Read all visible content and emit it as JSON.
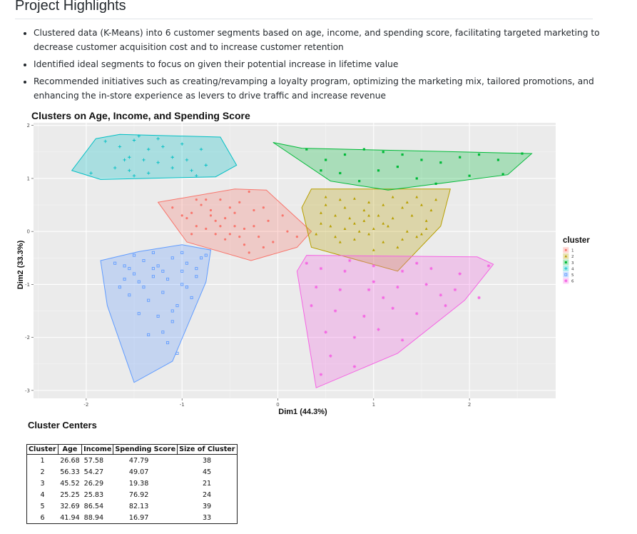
{
  "page": {
    "title": "Project Highlights",
    "bullets": [
      "Clustered data (K-Means) into 6 customer segments based on age, income, and spending score, facilitating targeted marketing to decrease customer acquisition cost and to increase customer retention",
      "Identified ideal segments to focus on given their potential increase in lifetime value",
      "Recommended initiatives such as creating/revamping a loyalty program, optimizing the marketing mix, tailored promotions, and enhancing the in-store experience as levers to drive traffic and increase revenue"
    ]
  },
  "chart_data": {
    "type": "scatter",
    "title": "Clusters on Age, Income, and Spending Score",
    "xlabel": "Dim1 (44.3%)",
    "ylabel": "Dim2 (33.3%)",
    "xlim": [
      -2.55,
      2.9
    ],
    "ylim": [
      -3.15,
      2.05
    ],
    "xticks": [
      -2,
      -1,
      0,
      1,
      2
    ],
    "yticks": [
      2,
      1,
      0,
      -1,
      -2,
      -3
    ],
    "grid": true,
    "legend_title": "cluster",
    "legend_position": "right",
    "series": [
      {
        "name": "1",
        "color": "#F8766D",
        "marker": "circle",
        "hull": [
          [
            -1.25,
            0.55
          ],
          [
            -0.45,
            0.8
          ],
          [
            -0.12,
            0.78
          ],
          [
            0.35,
            0.0
          ],
          [
            0.2,
            -0.3
          ],
          [
            -0.28,
            -0.55
          ],
          [
            -0.95,
            -0.2
          ]
        ],
        "points": [
          [
            -1.1,
            0.45
          ],
          [
            -0.9,
            0.35
          ],
          [
            -0.7,
            0.3
          ],
          [
            -0.55,
            0.25
          ],
          [
            -0.4,
            0.55
          ],
          [
            -0.25,
            0.4
          ],
          [
            -0.1,
            0.2
          ],
          [
            -0.75,
            0.05
          ],
          [
            -0.6,
            0.1
          ],
          [
            -0.5,
            -0.05
          ],
          [
            -0.35,
            0.05
          ],
          [
            -0.2,
            -0.1
          ],
          [
            -0.15,
            -0.3
          ],
          [
            -0.3,
            -0.4
          ],
          [
            -0.85,
            0.1
          ],
          [
            -0.65,
            0.2
          ],
          [
            -0.45,
            0.1
          ],
          [
            -0.6,
            0.6
          ],
          [
            -0.8,
            0.5
          ],
          [
            -0.3,
            0.75
          ],
          [
            0.1,
            0.0
          ],
          [
            0.2,
            -0.1
          ],
          [
            -0.05,
            -0.2
          ],
          [
            -0.95,
            0.25
          ],
          [
            -0.55,
            -0.15
          ],
          [
            -0.4,
            -0.1
          ],
          [
            -0.7,
            0.4
          ],
          [
            -1.0,
            0.3
          ],
          [
            -0.85,
            0.6
          ],
          [
            -0.25,
            0.1
          ],
          [
            -0.15,
            0.45
          ],
          [
            0.05,
            0.3
          ],
          [
            -0.45,
            0.35
          ],
          [
            -0.65,
            -0.05
          ],
          [
            -0.35,
            -0.25
          ],
          [
            -0.75,
            0.6
          ],
          [
            -0.5,
            0.45
          ],
          [
            -0.9,
            -0.05
          ]
        ]
      },
      {
        "name": "2",
        "color": "#B79F00",
        "marker": "triangle",
        "hull": [
          [
            0.35,
            0.8
          ],
          [
            1.8,
            0.8
          ],
          [
            1.7,
            0.1
          ],
          [
            1.25,
            -0.75
          ],
          [
            0.35,
            -0.3
          ],
          [
            0.25,
            0.45
          ]
        ],
        "points": [
          [
            0.5,
            0.65
          ],
          [
            0.65,
            0.6
          ],
          [
            0.8,
            0.62
          ],
          [
            0.95,
            0.55
          ],
          [
            1.1,
            0.5
          ],
          [
            1.3,
            0.45
          ],
          [
            1.5,
            0.5
          ],
          [
            1.65,
            0.6
          ],
          [
            0.45,
            0.35
          ],
          [
            0.6,
            0.3
          ],
          [
            0.75,
            0.25
          ],
          [
            0.9,
            0.2
          ],
          [
            1.05,
            0.3
          ],
          [
            1.2,
            0.25
          ],
          [
            1.4,
            0.3
          ],
          [
            1.55,
            0.2
          ],
          [
            0.55,
            0.1
          ],
          [
            0.7,
            0.05
          ],
          [
            0.85,
            0.0
          ],
          [
            1.0,
            0.05
          ],
          [
            1.15,
            0.1
          ],
          [
            1.35,
            0.0
          ],
          [
            1.5,
            -0.05
          ],
          [
            0.4,
            -0.05
          ],
          [
            0.6,
            -0.1
          ],
          [
            0.8,
            -0.15
          ],
          [
            0.95,
            -0.05
          ],
          [
            1.1,
            -0.2
          ],
          [
            1.3,
            -0.15
          ],
          [
            1.45,
            -0.1
          ],
          [
            0.5,
            0.5
          ],
          [
            0.7,
            0.45
          ],
          [
            0.9,
            0.4
          ],
          [
            1.2,
            0.65
          ],
          [
            1.45,
            0.65
          ],
          [
            1.6,
            0.4
          ],
          [
            0.65,
            -0.2
          ],
          [
            1.25,
            -0.3
          ],
          [
            1.0,
            -0.35
          ],
          [
            0.8,
            0.15
          ],
          [
            1.55,
            0.05
          ],
          [
            0.45,
            0.15
          ],
          [
            1.1,
            0.15
          ],
          [
            1.35,
            0.55
          ],
          [
            0.95,
            0.3
          ]
        ]
      },
      {
        "name": "3",
        "color": "#00BA38",
        "marker": "square",
        "hull": [
          [
            -0.05,
            1.68
          ],
          [
            0.25,
            1.57
          ],
          [
            2.65,
            1.47
          ],
          [
            2.4,
            1.07
          ],
          [
            1.15,
            0.78
          ],
          [
            0.55,
            0.95
          ]
        ],
        "points": [
          [
            0.3,
            1.55
          ],
          [
            0.5,
            1.35
          ],
          [
            0.7,
            1.45
          ],
          [
            0.9,
            1.55
          ],
          [
            1.1,
            1.5
          ],
          [
            1.3,
            1.45
          ],
          [
            1.5,
            1.35
          ],
          [
            1.7,
            1.3
          ],
          [
            1.9,
            1.4
          ],
          [
            2.1,
            1.45
          ],
          [
            2.3,
            1.35
          ],
          [
            2.55,
            1.47
          ],
          [
            0.45,
            1.15
          ],
          [
            0.65,
            1.1
          ],
          [
            0.85,
            0.95
          ],
          [
            1.05,
            1.15
          ],
          [
            1.25,
            1.22
          ],
          [
            1.45,
            1.0
          ],
          [
            1.65,
            0.9
          ],
          [
            2.0,
            1.05
          ],
          [
            2.35,
            1.08
          ]
        ]
      },
      {
        "name": "4",
        "color": "#00BFC4",
        "marker": "plus",
        "hull": [
          [
            -1.9,
            1.75
          ],
          [
            -1.65,
            1.83
          ],
          [
            -0.6,
            1.78
          ],
          [
            -0.43,
            1.25
          ],
          [
            -0.65,
            1.03
          ],
          [
            -1.85,
            0.98
          ],
          [
            -2.15,
            1.15
          ]
        ],
        "points": [
          [
            -1.8,
            1.7
          ],
          [
            -1.65,
            1.6
          ],
          [
            -1.5,
            1.72
          ],
          [
            -1.35,
            1.55
          ],
          [
            -1.2,
            1.6
          ],
          [
            -1.0,
            1.65
          ],
          [
            -0.8,
            1.55
          ],
          [
            -1.55,
            1.4
          ],
          [
            -1.4,
            1.35
          ],
          [
            -1.25,
            1.3
          ],
          [
            -1.1,
            1.4
          ],
          [
            -0.95,
            1.35
          ],
          [
            -0.75,
            1.25
          ],
          [
            -1.7,
            1.2
          ],
          [
            -1.55,
            1.15
          ],
          [
            -1.35,
            1.1
          ],
          [
            -0.9,
            1.15
          ],
          [
            -1.45,
            1.8
          ],
          [
            -1.25,
            1.75
          ],
          [
            -1.6,
            1.35
          ],
          [
            -1.1,
            1.2
          ],
          [
            -0.85,
            1.05
          ],
          [
            -1.95,
            1.1
          ],
          [
            -1.5,
            1.05
          ]
        ]
      },
      {
        "name": "5",
        "color": "#619CFF",
        "marker": "square-outline",
        "hull": [
          [
            -1.85,
            -0.55
          ],
          [
            -1.45,
            -0.38
          ],
          [
            -1.0,
            -0.25
          ],
          [
            -0.7,
            -0.35
          ],
          [
            -0.75,
            -0.95
          ],
          [
            -1.1,
            -2.45
          ],
          [
            -1.5,
            -2.85
          ],
          [
            -1.78,
            -1.4
          ]
        ],
        "points": [
          [
            -1.7,
            -0.6
          ],
          [
            -1.55,
            -0.7
          ],
          [
            -1.4,
            -0.55
          ],
          [
            -1.25,
            -0.65
          ],
          [
            -1.1,
            -0.5
          ],
          [
            -0.95,
            -0.6
          ],
          [
            -0.8,
            -0.5
          ],
          [
            -1.6,
            -0.9
          ],
          [
            -1.45,
            -0.95
          ],
          [
            -1.3,
            -0.85
          ],
          [
            -1.15,
            -0.9
          ],
          [
            -1.0,
            -1.0
          ],
          [
            -0.85,
            -0.85
          ],
          [
            -1.55,
            -1.2
          ],
          [
            -1.35,
            -1.3
          ],
          [
            -1.2,
            -1.15
          ],
          [
            -1.05,
            -1.4
          ],
          [
            -0.9,
            -1.25
          ],
          [
            -1.45,
            -1.55
          ],
          [
            -1.25,
            -1.6
          ],
          [
            -1.1,
            -1.5
          ],
          [
            -1.2,
            -1.9
          ],
          [
            -1.05,
            -2.3
          ],
          [
            -1.15,
            -2.1
          ],
          [
            -1.35,
            -1.95
          ],
          [
            -1.5,
            -0.8
          ],
          [
            -0.85,
            -0.7
          ],
          [
            -1.65,
            -1.05
          ],
          [
            -1.0,
            -0.75
          ],
          [
            -1.3,
            -0.4
          ],
          [
            -1.5,
            -0.45
          ],
          [
            -0.75,
            -0.45
          ],
          [
            -1.2,
            -0.75
          ],
          [
            -1.4,
            -1.05
          ],
          [
            -0.95,
            -1.05
          ],
          [
            -1.1,
            -1.7
          ],
          [
            -1.3,
            -0.7
          ],
          [
            -1.6,
            -0.65
          ],
          [
            -1.0,
            -0.4
          ]
        ]
      },
      {
        "name": "6",
        "color": "#F564E3",
        "marker": "star",
        "hull": [
          [
            0.3,
            -0.45
          ],
          [
            2.08,
            -0.48
          ],
          [
            2.25,
            -0.62
          ],
          [
            1.95,
            -1.3
          ],
          [
            1.25,
            -2.3
          ],
          [
            0.4,
            -2.95
          ],
          [
            0.2,
            -0.75
          ]
        ],
        "points": [
          [
            0.45,
            -0.7
          ],
          [
            0.7,
            -0.75
          ],
          [
            1.0,
            -0.65
          ],
          [
            1.3,
            -0.75
          ],
          [
            1.6,
            -0.7
          ],
          [
            1.9,
            -0.8
          ],
          [
            2.2,
            -0.65
          ],
          [
            0.4,
            -1.05
          ],
          [
            0.65,
            -1.1
          ],
          [
            0.95,
            -1.1
          ],
          [
            1.25,
            -1.05
          ],
          [
            1.55,
            -1.0
          ],
          [
            1.85,
            -1.1
          ],
          [
            2.1,
            -1.25
          ],
          [
            0.35,
            -1.4
          ],
          [
            0.6,
            -1.5
          ],
          [
            0.9,
            -1.6
          ],
          [
            1.2,
            -1.45
          ],
          [
            1.45,
            -1.55
          ],
          [
            1.75,
            -1.4
          ],
          [
            0.5,
            -1.9
          ],
          [
            0.8,
            -2.0
          ],
          [
            1.05,
            -1.85
          ],
          [
            1.3,
            -2.05
          ],
          [
            0.55,
            -2.35
          ],
          [
            0.8,
            -2.55
          ],
          [
            1.0,
            -0.95
          ],
          [
            0.75,
            -0.55
          ],
          [
            1.45,
            -0.6
          ],
          [
            0.3,
            -0.6
          ],
          [
            1.7,
            -1.2
          ],
          [
            0.45,
            -2.7
          ],
          [
            1.1,
            -1.25
          ]
        ]
      }
    ]
  },
  "cluster_centers": {
    "title": "Cluster Centers",
    "headers": [
      "Cluster",
      "Age",
      "Income",
      "Spending Score",
      "Size of Cluster"
    ],
    "rows": [
      [
        "1",
        "26.68",
        "57.58",
        "47.79",
        "38"
      ],
      [
        "2",
        "56.33",
        "54.27",
        "49.07",
        "45"
      ],
      [
        "3",
        "45.52",
        "26.29",
        "19.38",
        "21"
      ],
      [
        "4",
        "25.25",
        "25.83",
        "76.92",
        "24"
      ],
      [
        "5",
        "32.69",
        "86.54",
        "82.13",
        "39"
      ],
      [
        "6",
        "41.94",
        "88.94",
        "16.97",
        "33"
      ]
    ]
  }
}
